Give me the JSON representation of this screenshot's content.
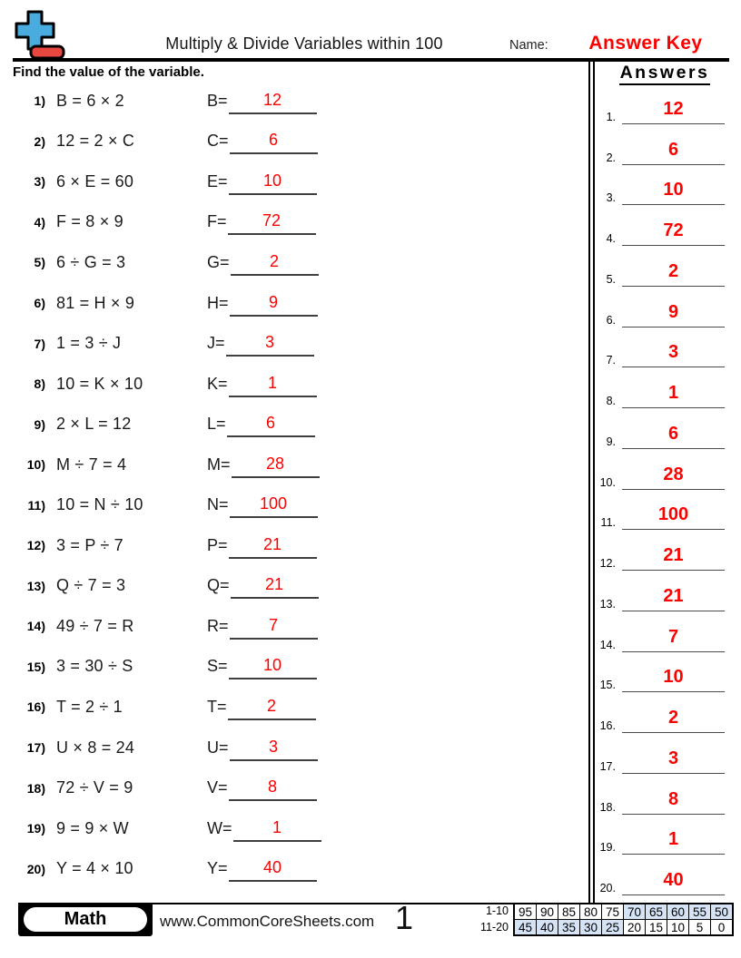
{
  "header": {
    "title": "Multiply & Divide Variables within 100",
    "name_label": "Name:",
    "answer_key": "Answer Key"
  },
  "instruction": "Find the value of the variable.",
  "answers_title": "Answers",
  "problems": [
    {
      "num": "1)",
      "equation": "B = 6 × 2",
      "label": "B=",
      "answer": "12"
    },
    {
      "num": "2)",
      "equation": "12 = 2 × C",
      "label": "C=",
      "answer": "6"
    },
    {
      "num": "3)",
      "equation": "6 × E = 60",
      "label": "E=",
      "answer": "10"
    },
    {
      "num": "4)",
      "equation": "F = 8 × 9",
      "label": "F=",
      "answer": "72"
    },
    {
      "num": "5)",
      "equation": "6 ÷ G = 3",
      "label": "G=",
      "answer": "2"
    },
    {
      "num": "6)",
      "equation": "81 = H × 9",
      "label": "H=",
      "answer": "9"
    },
    {
      "num": "7)",
      "equation": "1 = 3 ÷ J",
      "label": "J=",
      "answer": "3"
    },
    {
      "num": "8)",
      "equation": "10 = K × 10",
      "label": "K=",
      "answer": "1"
    },
    {
      "num": "9)",
      "equation": "2 × L = 12",
      "label": "L=",
      "answer": "6"
    },
    {
      "num": "10)",
      "equation": "M ÷ 7 = 4",
      "label": "M=",
      "answer": "28"
    },
    {
      "num": "11)",
      "equation": "10 = N ÷ 10",
      "label": "N=",
      "answer": "100"
    },
    {
      "num": "12)",
      "equation": "3 = P ÷ 7",
      "label": "P=",
      "answer": "21"
    },
    {
      "num": "13)",
      "equation": "Q ÷ 7 = 3",
      "label": "Q=",
      "answer": "21"
    },
    {
      "num": "14)",
      "equation": "49 ÷ 7 = R",
      "label": "R=",
      "answer": "7"
    },
    {
      "num": "15)",
      "equation": "3 = 30 ÷ S",
      "label": "S=",
      "answer": "10"
    },
    {
      "num": "16)",
      "equation": "T = 2 ÷ 1",
      "label": "T=",
      "answer": "2"
    },
    {
      "num": "17)",
      "equation": "U × 8 = 24",
      "label": "U=",
      "answer": "3"
    },
    {
      "num": "18)",
      "equation": "72 ÷ V = 9",
      "label": "V=",
      "answer": "8"
    },
    {
      "num": "19)",
      "equation": "9 = 9 × W",
      "label": "W=",
      "answer": "1"
    },
    {
      "num": "20)",
      "equation": "Y = 4 × 10",
      "label": "Y=",
      "answer": "40"
    }
  ],
  "answer_list": [
    {
      "num": "1.",
      "value": "12"
    },
    {
      "num": "2.",
      "value": "6"
    },
    {
      "num": "3.",
      "value": "10"
    },
    {
      "num": "4.",
      "value": "72"
    },
    {
      "num": "5.",
      "value": "2"
    },
    {
      "num": "6.",
      "value": "9"
    },
    {
      "num": "7.",
      "value": "3"
    },
    {
      "num": "8.",
      "value": "1"
    },
    {
      "num": "9.",
      "value": "6"
    },
    {
      "num": "10.",
      "value": "28"
    },
    {
      "num": "11.",
      "value": "100"
    },
    {
      "num": "12.",
      "value": "21"
    },
    {
      "num": "13.",
      "value": "21"
    },
    {
      "num": "14.",
      "value": "7"
    },
    {
      "num": "15.",
      "value": "10"
    },
    {
      "num": "16.",
      "value": "2"
    },
    {
      "num": "17.",
      "value": "3"
    },
    {
      "num": "18.",
      "value": "8"
    },
    {
      "num": "19.",
      "value": "1"
    },
    {
      "num": "20.",
      "value": "40"
    }
  ],
  "footer": {
    "subject": "Math",
    "website": "www.CommonCoreSheets.com",
    "page_number": "1",
    "score_table": {
      "rows": [
        {
          "label": "1-10",
          "values": [
            "95",
            "90",
            "85",
            "80",
            "75",
            "70",
            "65",
            "60",
            "55",
            "50"
          ],
          "highlight": [
            false,
            false,
            false,
            false,
            false,
            true,
            true,
            true,
            true,
            true
          ]
        },
        {
          "label": "11-20",
          "values": [
            "45",
            "40",
            "35",
            "30",
            "25",
            "20",
            "15",
            "10",
            "5",
            "0"
          ],
          "highlight": [
            true,
            true,
            true,
            true,
            true,
            false,
            false,
            false,
            false,
            false
          ]
        }
      ]
    }
  },
  "colors": {
    "answer_red": "#ff0000",
    "logo_blue": "#4aabdf",
    "logo_red": "#e84740",
    "table_highlight": "#d5e3f6"
  }
}
